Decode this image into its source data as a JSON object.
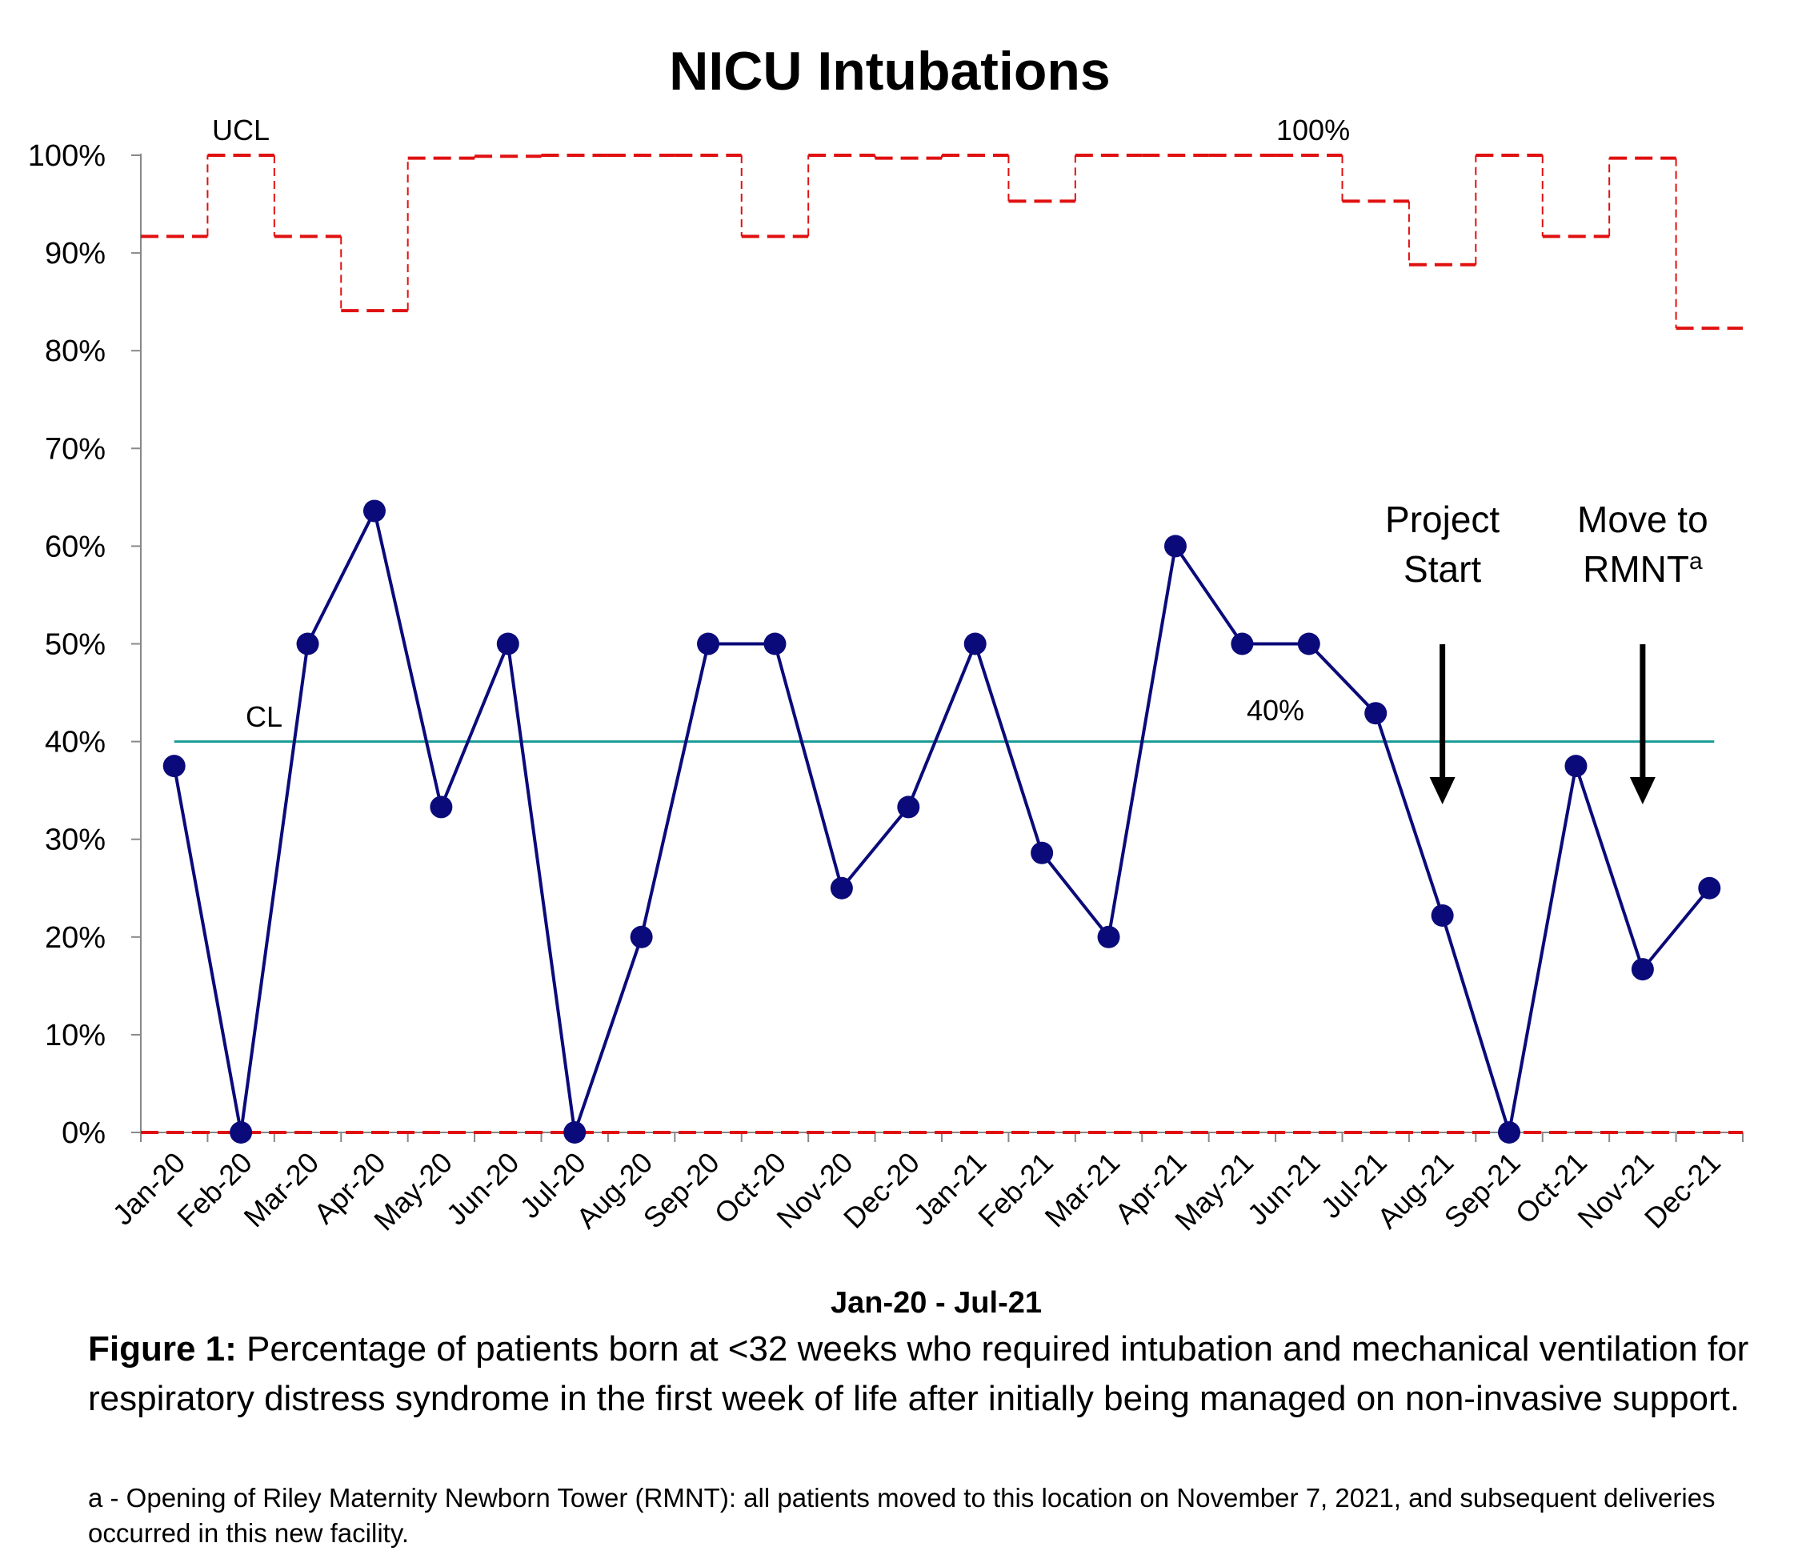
{
  "chart_data": {
    "type": "line",
    "title": "NICU Intubations",
    "xlabel": "Jan-20 - Jul-21",
    "ylabel": "",
    "ylim": [
      0,
      100
    ],
    "yticks": [
      "0%",
      "10%",
      "20%",
      "30%",
      "40%",
      "50%",
      "60%",
      "70%",
      "80%",
      "90%",
      "100%"
    ],
    "categories": [
      "Jan-20",
      "Feb-20",
      "Mar-20",
      "Apr-20",
      "May-20",
      "Jun-20",
      "Jul-20",
      "Aug-20",
      "Sep-20",
      "Oct-20",
      "Nov-20",
      "Dec-20",
      "Jan-21",
      "Feb-21",
      "Mar-21",
      "Apr-21",
      "May-21",
      "Jun-21",
      "Jul-21",
      "Aug-21",
      "Sep-21",
      "Oct-21",
      "Nov-21",
      "Dec-21"
    ],
    "series": [
      {
        "values": [
          37.5,
          0,
          50,
          63.6,
          33.3,
          50,
          0,
          20,
          50,
          50,
          25,
          33.3,
          50,
          28.6,
          20,
          60,
          50,
          50,
          42.9,
          22.2,
          0,
          37.5,
          16.7,
          25
        ],
        "color": "#0a0a7a"
      }
    ],
    "ucl": [
      91.7,
      100,
      91.7,
      84.1,
      99.7,
      99.9,
      100,
      100,
      100,
      91.7,
      100,
      99.7,
      100,
      95.3,
      100,
      100,
      100,
      100,
      95.3,
      88.8,
      100,
      91.7,
      99.7,
      82.3
    ],
    "lcl": 0,
    "cl": 40,
    "cl_color": "#1a9a96",
    "limit_color": "#e01010",
    "labels": {
      "ucl": "UCL",
      "ucl_value": "100%",
      "cl": "CL",
      "cl_value": "40%"
    },
    "annotations": [
      {
        "category": "Aug-21",
        "lines": [
          "Project",
          "Start"
        ]
      },
      {
        "category": "Nov-21",
        "lines": [
          "Move to",
          "RMNT"
        ],
        "superscript": "a"
      }
    ],
    "grid": false,
    "legend": "none"
  },
  "caption": {
    "heading": "Figure 1:",
    "text": "Percentage of patients born at <32 weeks who required intubation and mechanical ventilation for respiratory distress syndrome in the first week of life after initially being managed on non-invasive support.",
    "footnote": "a - Opening of Riley Maternity Newborn Tower (RMNT): all patients moved to this location on November 7, 2021, and subsequent deliveries occurred in this new facility."
  }
}
